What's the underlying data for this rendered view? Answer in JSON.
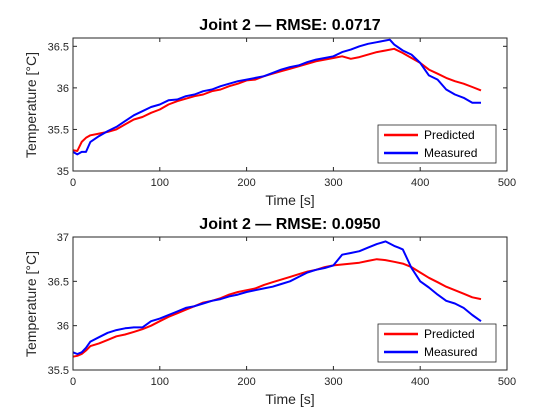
{
  "chart_data": [
    {
      "type": "line",
      "title": "Joint 2 — RMSE: 0.0717",
      "xlabel": "Time [s]",
      "ylabel": "Temperature [°C]",
      "xlim": [
        0,
        500
      ],
      "ylim": [
        35,
        36.6
      ],
      "xticks": [
        0,
        100,
        200,
        300,
        400,
        500
      ],
      "yticks": [
        35,
        35.5,
        36,
        36.5
      ],
      "xtick_labels": [
        "0",
        "100",
        "200",
        "300",
        "400",
        "500"
      ],
      "ytick_labels": [
        "35",
        "35.5",
        "36",
        "36.5"
      ],
      "legend_position": "bottom-right",
      "series": [
        {
          "name": "Predicted",
          "color": "#ff0000",
          "x": [
            0,
            5,
            10,
            15,
            20,
            30,
            40,
            50,
            60,
            70,
            80,
            90,
            100,
            110,
            120,
            130,
            140,
            150,
            160,
            170,
            180,
            190,
            200,
            210,
            220,
            230,
            240,
            250,
            260,
            270,
            280,
            290,
            300,
            310,
            320,
            330,
            340,
            350,
            360,
            370,
            380,
            390,
            400,
            410,
            420,
            430,
            440,
            450,
            460,
            470
          ],
          "y": [
            35.25,
            35.24,
            35.35,
            35.4,
            35.43,
            35.45,
            35.47,
            35.5,
            35.56,
            35.62,
            35.65,
            35.7,
            35.74,
            35.8,
            35.84,
            35.87,
            35.9,
            35.92,
            35.96,
            35.98,
            36.02,
            36.05,
            36.09,
            36.1,
            36.14,
            36.17,
            36.2,
            36.23,
            36.26,
            36.29,
            36.32,
            36.34,
            36.36,
            36.38,
            36.35,
            36.37,
            36.4,
            36.43,
            36.45,
            36.47,
            36.42,
            36.36,
            36.3,
            36.22,
            36.17,
            36.12,
            36.08,
            36.05,
            36.01,
            35.97
          ]
        },
        {
          "name": "Measured",
          "color": "#0000ff",
          "x": [
            0,
            5,
            10,
            15,
            20,
            30,
            40,
            50,
            60,
            70,
            80,
            90,
            100,
            110,
            120,
            130,
            140,
            150,
            160,
            170,
            180,
            190,
            200,
            210,
            220,
            230,
            240,
            250,
            260,
            270,
            280,
            290,
            300,
            310,
            320,
            330,
            340,
            350,
            360,
            365,
            370,
            380,
            390,
            400,
            410,
            420,
            430,
            440,
            450,
            460,
            470
          ],
          "y": [
            35.23,
            35.2,
            35.23,
            35.23,
            35.35,
            35.42,
            35.48,
            35.53,
            35.6,
            35.67,
            35.72,
            35.77,
            35.8,
            35.85,
            35.86,
            35.9,
            35.92,
            35.96,
            35.98,
            36.02,
            36.05,
            36.08,
            36.1,
            36.12,
            36.14,
            36.18,
            36.22,
            36.25,
            36.27,
            36.31,
            36.34,
            36.36,
            36.38,
            36.43,
            36.46,
            36.5,
            36.53,
            36.55,
            36.57,
            36.58,
            36.52,
            36.45,
            36.4,
            36.3,
            36.15,
            36.1,
            35.98,
            35.92,
            35.88,
            35.82,
            35.82
          ]
        }
      ]
    },
    {
      "type": "line",
      "title": "Joint 2 — RMSE: 0.0950",
      "xlabel": "Time [s]",
      "ylabel": "Temperature [°C]",
      "xlim": [
        0,
        500
      ],
      "ylim": [
        35.5,
        37
      ],
      "xticks": [
        0,
        100,
        200,
        300,
        400,
        500
      ],
      "yticks": [
        35.5,
        36,
        36.5,
        37
      ],
      "xtick_labels": [
        "0",
        "100",
        "200",
        "300",
        "400",
        "500"
      ],
      "ytick_labels": [
        "35.5",
        "36",
        "36.5",
        "37"
      ],
      "legend_position": "bottom-right",
      "series": [
        {
          "name": "Predicted",
          "color": "#ff0000",
          "x": [
            0,
            5,
            10,
            15,
            20,
            30,
            40,
            50,
            60,
            70,
            80,
            90,
            100,
            110,
            120,
            130,
            140,
            150,
            160,
            170,
            180,
            190,
            200,
            210,
            220,
            230,
            240,
            250,
            260,
            270,
            280,
            290,
            300,
            310,
            320,
            330,
            340,
            350,
            360,
            370,
            380,
            390,
            400,
            410,
            420,
            430,
            440,
            450,
            460,
            470
          ],
          "y": [
            35.65,
            35.66,
            35.68,
            35.72,
            35.77,
            35.8,
            35.84,
            35.88,
            35.9,
            35.93,
            35.96,
            36.0,
            36.05,
            36.1,
            36.14,
            36.18,
            36.22,
            36.26,
            36.28,
            36.31,
            36.35,
            36.38,
            36.4,
            36.42,
            36.46,
            36.49,
            36.52,
            36.55,
            36.58,
            36.61,
            36.63,
            36.66,
            36.68,
            36.69,
            36.7,
            36.71,
            36.73,
            36.75,
            36.74,
            36.72,
            36.7,
            36.66,
            36.6,
            36.54,
            36.49,
            36.44,
            36.4,
            36.36,
            36.32,
            36.3
          ]
        },
        {
          "name": "Measured",
          "color": "#0000ff",
          "x": [
            0,
            5,
            10,
            15,
            20,
            30,
            40,
            50,
            60,
            70,
            80,
            90,
            100,
            110,
            120,
            130,
            140,
            150,
            160,
            170,
            180,
            190,
            200,
            210,
            220,
            230,
            240,
            250,
            260,
            270,
            280,
            290,
            300,
            310,
            320,
            330,
            340,
            350,
            360,
            370,
            375,
            380,
            390,
            400,
            410,
            420,
            430,
            440,
            450,
            460,
            470
          ],
          "y": [
            35.7,
            35.68,
            35.7,
            35.75,
            35.82,
            35.87,
            35.92,
            35.95,
            35.97,
            35.98,
            35.98,
            36.05,
            36.08,
            36.12,
            36.16,
            36.2,
            36.22,
            36.25,
            36.28,
            36.3,
            36.33,
            36.35,
            36.38,
            36.4,
            36.42,
            36.44,
            36.47,
            36.5,
            36.55,
            36.6,
            36.63,
            36.65,
            36.68,
            36.8,
            36.82,
            36.84,
            36.88,
            36.92,
            36.95,
            36.9,
            36.88,
            36.86,
            36.65,
            36.5,
            36.43,
            36.35,
            36.28,
            36.25,
            36.2,
            36.12,
            36.05
          ]
        }
      ]
    }
  ]
}
